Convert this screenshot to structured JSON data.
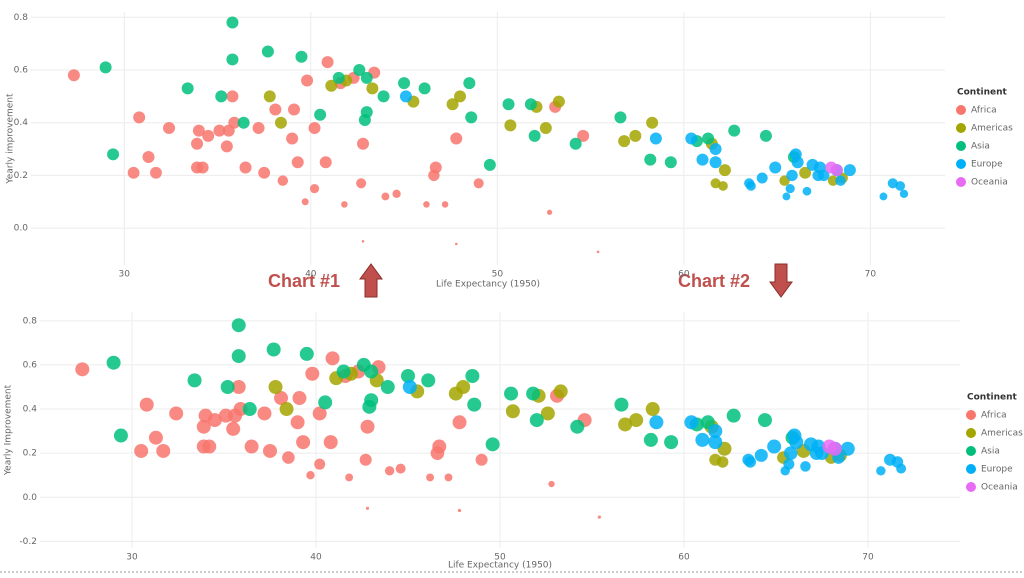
{
  "annotations": [
    "Chart #1",
    "Chart #2"
  ],
  "chart_data": [
    {
      "type": "scatter",
      "x_label": "Life Expectancy (1950)",
      "y_label": "Yearly improvement",
      "legend_title": "Continent",
      "legend": "right",
      "grid": true,
      "xlim": [
        25,
        74
      ],
      "ylim": [
        -0.14,
        0.82
      ],
      "xticks": [
        30,
        40,
        50,
        60,
        70
      ],
      "yticks": [
        {
          "value": 0,
          "label": "0.0"
        },
        0.2,
        0.4,
        0.6,
        0.8
      ],
      "series": [
        {
          "name": "Africa",
          "color": "#f8766d",
          "x": [
            27.3,
            30.8,
            31.3,
            30.5,
            31.7,
            32.4,
            33.9,
            34.0,
            34.5,
            35.1,
            35.6,
            35.8,
            35.9,
            35.5,
            33.9,
            34.2,
            36.5,
            37.2,
            37.5,
            38.1,
            38.5,
            39.0,
            39.1,
            39.3,
            39.7,
            39.8,
            40.2,
            40.2,
            40.8,
            40.9,
            41.6,
            41.8,
            42.3,
            42.8,
            43.4,
            42.7,
            42.8,
            44.0,
            44.6,
            46.2,
            46.7,
            46.6,
            47.2,
            47.8,
            49.0,
            47.8,
            52.8,
            53.1,
            54.6,
            55.4
          ],
          "y": [
            0.58,
            0.42,
            0.27,
            0.21,
            0.21,
            0.38,
            0.32,
            0.37,
            0.35,
            0.37,
            0.37,
            0.5,
            0.4,
            0.31,
            0.23,
            0.23,
            0.23,
            0.38,
            0.21,
            0.45,
            0.18,
            0.34,
            0.45,
            0.25,
            0.1,
            0.56,
            0.38,
            0.15,
            0.25,
            0.63,
            0.55,
            0.09,
            0.57,
            0.32,
            0.59,
            0.17,
            -0.05,
            0.12,
            0.13,
            0.09,
            0.23,
            0.2,
            0.09,
            0.34,
            0.17,
            -0.06,
            0.06,
            0.46,
            0.35,
            -0.09
          ]
        },
        {
          "name": "Americas",
          "color": "#a3a500",
          "x": [
            37.8,
            38.4,
            41.1,
            41.9,
            43.3,
            45.5,
            48.0,
            47.6,
            50.7,
            52.1,
            52.6,
            53.3,
            56.8,
            57.4,
            58.3,
            61.5,
            61.7,
            62.1,
            62.2,
            65.4,
            66.5,
            68.0,
            68.5
          ],
          "y": [
            0.5,
            0.4,
            0.54,
            0.56,
            0.53,
            0.48,
            0.5,
            0.47,
            0.39,
            0.46,
            0.38,
            0.48,
            0.33,
            0.35,
            0.4,
            0.32,
            0.17,
            0.16,
            0.22,
            0.18,
            0.21,
            0.18,
            0.19
          ]
        },
        {
          "name": "Asia",
          "color": "#00bf7d",
          "x": [
            29.0,
            29.4,
            33.4,
            35.2,
            35.8,
            35.8,
            36.4,
            37.7,
            39.5,
            40.5,
            41.5,
            42.6,
            43.0,
            43.0,
            42.9,
            43.9,
            45.0,
            46.1,
            48.5,
            48.6,
            49.6,
            50.6,
            51.8,
            52.0,
            54.2,
            56.6,
            58.2,
            59.3,
            60.7,
            61.3,
            62.7,
            64.4,
            65.9
          ],
          "y": [
            0.61,
            0.28,
            0.53,
            0.5,
            0.78,
            0.64,
            0.4,
            0.67,
            0.65,
            0.43,
            0.57,
            0.6,
            0.57,
            0.44,
            0.41,
            0.5,
            0.55,
            0.53,
            0.55,
            0.42,
            0.24,
            0.47,
            0.47,
            0.35,
            0.32,
            0.42,
            0.26,
            0.25,
            0.33,
            0.34,
            0.37,
            0.35,
            0.27
          ]
        },
        {
          "name": "Europe",
          "color": "#00b0f6",
          "x": [
            45.1,
            58.5,
            60.4,
            61.0,
            61.7,
            61.7,
            63.5,
            63.6,
            64.2,
            64.9,
            65.7,
            65.8,
            66.0,
            66.1,
            66.6,
            66.9,
            67.2,
            67.3,
            67.5,
            68.2,
            68.4,
            68.9,
            70.7,
            71.2,
            71.6,
            71.8,
            65.5
          ],
          "y": [
            0.5,
            0.34,
            0.34,
            0.26,
            0.3,
            0.25,
            0.17,
            0.16,
            0.19,
            0.23,
            0.15,
            0.2,
            0.28,
            0.25,
            0.14,
            0.24,
            0.2,
            0.23,
            0.2,
            0.22,
            0.18,
            0.22,
            0.12,
            0.17,
            0.16,
            0.13,
            0.12
          ]
        },
        {
          "name": "Oceania",
          "color": "#e76bf3",
          "x": [
            67.9,
            68.2
          ],
          "y": [
            0.23,
            0.22
          ]
        }
      ]
    },
    {
      "type": "scatter",
      "x_label": "Life Expectancy (1950)",
      "y_label": "Yearly Improvement",
      "legend_title": "Continent",
      "legend": "right",
      "grid": true,
      "xlim": [
        25,
        75
      ],
      "ylim": [
        -0.23,
        0.84
      ],
      "xticks": [
        30,
        40,
        50,
        60,
        70
      ],
      "yticks": [
        -0.2,
        {
          "value": 0,
          "label": "0.0"
        },
        0.2,
        0.4,
        0.6,
        0.8
      ],
      "series": [
        {
          "name": "Africa",
          "color": "#f8766d",
          "x": [
            27.3,
            30.8,
            31.3,
            30.5,
            31.7,
            32.4,
            33.9,
            34.0,
            34.5,
            35.1,
            35.6,
            35.8,
            35.9,
            35.5,
            33.9,
            34.2,
            36.5,
            37.2,
            37.5,
            38.1,
            38.5,
            39.0,
            39.1,
            39.3,
            39.7,
            39.8,
            40.2,
            40.2,
            40.8,
            40.9,
            41.6,
            41.8,
            42.3,
            42.8,
            43.4,
            42.7,
            42.8,
            44.0,
            44.6,
            46.2,
            46.7,
            46.6,
            47.2,
            47.8,
            49.0,
            47.8,
            52.8,
            53.1,
            54.6,
            55.4
          ],
          "y": [
            0.58,
            0.42,
            0.27,
            0.21,
            0.21,
            0.38,
            0.32,
            0.37,
            0.35,
            0.37,
            0.37,
            0.5,
            0.4,
            0.31,
            0.23,
            0.23,
            0.23,
            0.38,
            0.21,
            0.45,
            0.18,
            0.34,
            0.45,
            0.25,
            0.1,
            0.56,
            0.38,
            0.15,
            0.25,
            0.63,
            0.55,
            0.09,
            0.57,
            0.32,
            0.59,
            0.17,
            -0.05,
            0.12,
            0.13,
            0.09,
            0.23,
            0.2,
            0.09,
            0.34,
            0.17,
            -0.06,
            0.06,
            0.46,
            0.35,
            -0.09
          ]
        },
        {
          "name": "Americas",
          "color": "#a3a500",
          "x": [
            37.8,
            38.4,
            41.1,
            41.9,
            43.3,
            45.5,
            48.0,
            47.6,
            50.7,
            52.1,
            52.6,
            53.3,
            56.8,
            57.4,
            58.3,
            61.5,
            61.7,
            62.1,
            62.2,
            65.4,
            66.5,
            68.0,
            68.5
          ],
          "y": [
            0.5,
            0.4,
            0.54,
            0.56,
            0.53,
            0.48,
            0.5,
            0.47,
            0.39,
            0.46,
            0.38,
            0.48,
            0.33,
            0.35,
            0.4,
            0.32,
            0.17,
            0.16,
            0.22,
            0.18,
            0.21,
            0.18,
            0.19
          ]
        },
        {
          "name": "Asia",
          "color": "#00bf7d",
          "x": [
            29.0,
            29.4,
            33.4,
            35.2,
            35.8,
            35.8,
            36.4,
            37.7,
            39.5,
            40.5,
            41.5,
            42.6,
            43.0,
            43.0,
            42.9,
            43.9,
            45.0,
            46.1,
            48.5,
            48.6,
            49.6,
            50.6,
            51.8,
            52.0,
            54.2,
            56.6,
            58.2,
            59.3,
            60.7,
            61.3,
            62.7,
            64.4,
            65.9
          ],
          "y": [
            0.61,
            0.28,
            0.53,
            0.5,
            0.78,
            0.64,
            0.4,
            0.67,
            0.65,
            0.43,
            0.57,
            0.6,
            0.57,
            0.44,
            0.41,
            0.5,
            0.55,
            0.53,
            0.55,
            0.42,
            0.24,
            0.47,
            0.47,
            0.35,
            0.32,
            0.42,
            0.26,
            0.25,
            0.33,
            0.34,
            0.37,
            0.35,
            0.27
          ]
        },
        {
          "name": "Europe",
          "color": "#00b0f6",
          "x": [
            45.1,
            58.5,
            60.4,
            61.0,
            61.7,
            61.7,
            63.5,
            63.6,
            64.2,
            64.9,
            65.7,
            65.8,
            66.0,
            66.1,
            66.6,
            66.9,
            67.2,
            67.3,
            67.5,
            68.2,
            68.4,
            68.9,
            70.7,
            71.2,
            71.6,
            71.8,
            65.5
          ],
          "y": [
            0.5,
            0.34,
            0.34,
            0.26,
            0.3,
            0.25,
            0.17,
            0.16,
            0.19,
            0.23,
            0.15,
            0.2,
            0.28,
            0.25,
            0.14,
            0.24,
            0.2,
            0.23,
            0.2,
            0.22,
            0.18,
            0.22,
            0.12,
            0.17,
            0.16,
            0.13,
            0.12
          ]
        },
        {
          "name": "Oceania",
          "color": "#e76bf3",
          "x": [
            67.9,
            68.2
          ],
          "y": [
            0.23,
            0.22
          ]
        }
      ]
    }
  ]
}
